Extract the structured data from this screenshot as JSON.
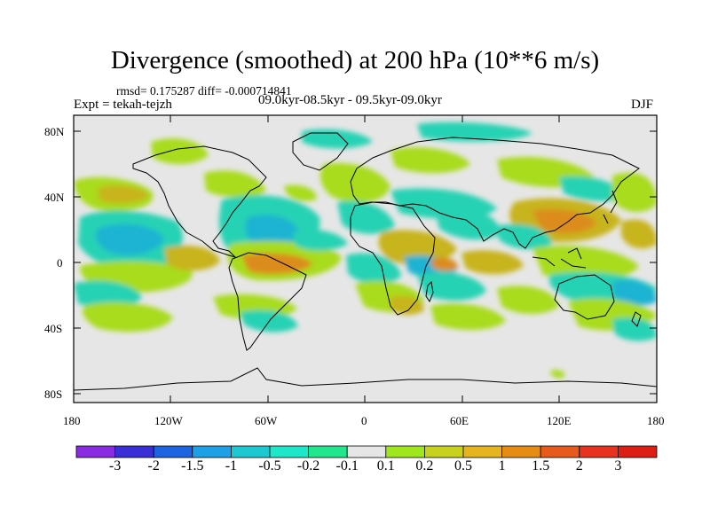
{
  "title": "Divergence (smoothed) at 200 hPa (10**6 m/s)",
  "stats": "rmsd= 0.175287  diff= -0.000714841",
  "experiment": "Expt = tekah-tejzh",
  "period": "09.0kyr-08.5kyr - 09.5kyr-09.0kyr",
  "season": "DJF",
  "lat_ticks": [
    "80N",
    "40N",
    "0",
    "40S",
    "80S"
  ],
  "lon_ticks": [
    "180",
    "120W",
    "60W",
    "0",
    "60E",
    "120E",
    "180"
  ],
  "colorbar": {
    "labels": [
      "-3",
      "-2",
      "-1.5",
      "-1",
      "-0.5",
      "-0.2",
      "-0.1",
      "0.1",
      "0.2",
      "0.5",
      "1",
      "1.5",
      "2",
      "3"
    ],
    "colors": [
      "#8a2be2",
      "#3a2fd6",
      "#1e64e0",
      "#1ea0e6",
      "#1ec8d2",
      "#1ee6c8",
      "#22e68c",
      "#e6e6e6",
      "#a0e61e",
      "#c8d21e",
      "#e6b41e",
      "#e68c14",
      "#e65a1e",
      "#e6321e",
      "#dc1e14"
    ]
  },
  "colors": {
    "background_field": "#e6e6e6",
    "positive_weak": "#a8dc1e",
    "positive_mid": "#c8b41e",
    "positive_strong": "#dc8c1e",
    "negative_weak": "#28d2b4",
    "negative_mid": "#1eb4d2",
    "negative_strong": "#1e96dc"
  }
}
